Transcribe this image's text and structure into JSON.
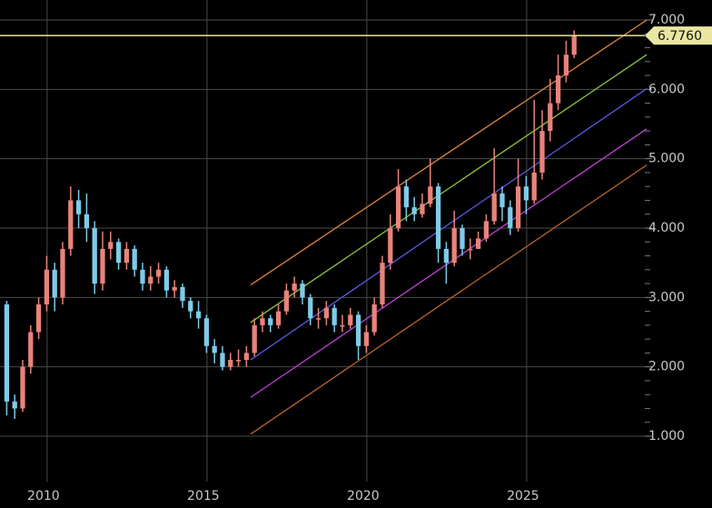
{
  "chart_data": {
    "type": "candlestick",
    "xlim": [
      2008.64,
      2028.81
    ],
    "ylim": [
      0.345,
      7.288
    ],
    "xticks": [
      2010,
      2015,
      2020,
      2025
    ],
    "yticks": [
      {
        "value": 1,
        "label": "1.000"
      },
      {
        "value": 2,
        "label": "2.000"
      },
      {
        "value": 3,
        "label": "3.000"
      },
      {
        "value": 4,
        "label": "4.000"
      },
      {
        "value": 5,
        "label": "5.000"
      },
      {
        "value": 6,
        "label": "6.000"
      },
      {
        "value": 7,
        "label": "7.000"
      }
    ],
    "yminor_ticks": [
      1.2,
      1.4,
      1.6,
      1.8,
      2.2,
      2.4,
      2.6,
      2.8,
      3.2,
      3.4,
      3.6,
      3.8,
      4.2,
      4.4,
      4.6,
      4.8,
      5.2,
      5.4,
      5.6,
      5.8,
      6.2,
      6.4,
      6.6,
      6.8
    ],
    "grid": true,
    "up_color": "#e8837b",
    "down_color": "#7ecbe8",
    "x": [
      2008.85,
      2009.1,
      2009.35,
      2009.6,
      2009.85,
      2010.1,
      2010.35,
      2010.6,
      2010.85,
      2011.1,
      2011.35,
      2011.6,
      2011.85,
      2012.1,
      2012.35,
      2012.6,
      2012.85,
      2013.1,
      2013.35,
      2013.6,
      2013.85,
      2014.1,
      2014.35,
      2014.6,
      2014.85,
      2015.1,
      2015.35,
      2015.6,
      2015.85,
      2016.1,
      2016.35,
      2016.6,
      2016.85,
      2017.1,
      2017.35,
      2017.6,
      2017.85,
      2018.1,
      2018.35,
      2018.6,
      2018.85,
      2019.1,
      2019.35,
      2019.6,
      2019.85,
      2020.1,
      2020.35,
      2020.6,
      2020.85,
      2021.1,
      2021.35,
      2021.6,
      2021.85,
      2022.1,
      2022.35,
      2022.6,
      2022.85,
      2023.1,
      2023.35,
      2023.6,
      2023.85,
      2024.1,
      2024.35,
      2024.6,
      2024.85,
      2025.1,
      2025.35,
      2025.6,
      2025.85,
      2026.1,
      2026.35,
      2026.6
    ],
    "open": [
      2.9,
      1.5,
      1.4,
      2.0,
      2.5,
      2.9,
      3.4,
      3.0,
      3.7,
      4.4,
      4.2,
      4.0,
      3.2,
      3.7,
      3.8,
      3.5,
      3.7,
      3.4,
      3.2,
      3.3,
      3.4,
      3.1,
      3.15,
      2.95,
      2.8,
      2.7,
      2.3,
      2.2,
      2.0,
      2.1,
      2.1,
      2.2,
      2.6,
      2.7,
      2.6,
      2.8,
      3.1,
      3.2,
      3.0,
      2.7,
      2.7,
      2.85,
      2.6,
      2.6,
      2.75,
      2.3,
      2.5,
      2.9,
      3.5,
      4.0,
      4.6,
      4.3,
      4.2,
      4.35,
      4.6,
      3.7,
      3.5,
      4.0,
      3.7,
      3.7,
      3.85,
      4.1,
      4.5,
      4.3,
      4.0,
      4.6,
      4.4,
      4.8,
      5.4,
      5.8,
      6.2,
      6.5
    ],
    "high": [
      2.95,
      1.6,
      2.1,
      2.6,
      3.0,
      3.6,
      3.5,
      3.8,
      4.6,
      4.55,
      4.5,
      4.1,
      3.95,
      3.95,
      3.85,
      3.8,
      3.75,
      3.5,
      3.45,
      3.5,
      3.45,
      3.25,
      3.2,
      3.0,
      2.95,
      2.75,
      2.4,
      2.3,
      2.2,
      2.25,
      2.3,
      2.7,
      2.8,
      2.75,
      2.9,
      3.2,
      3.3,
      3.25,
      3.05,
      2.85,
      2.95,
      2.9,
      2.75,
      2.85,
      2.8,
      2.6,
      3.0,
      3.6,
      4.2,
      4.85,
      4.7,
      4.45,
      4.5,
      5.0,
      4.65,
      3.8,
      4.25,
      4.05,
      3.85,
      3.95,
      4.2,
      5.15,
      4.6,
      4.4,
      5.0,
      4.75,
      5.85,
      5.7,
      6.15,
      6.5,
      6.7,
      6.85
    ],
    "low": [
      1.3,
      1.25,
      1.35,
      1.9,
      2.4,
      2.8,
      2.8,
      2.9,
      3.6,
      4.0,
      3.8,
      3.05,
      3.1,
      3.55,
      3.4,
      3.4,
      3.3,
      3.1,
      3.1,
      3.2,
      3.0,
      3.0,
      2.85,
      2.7,
      2.55,
      2.2,
      2.05,
      1.95,
      1.95,
      2.0,
      2.0,
      2.15,
      2.5,
      2.5,
      2.55,
      2.75,
      3.0,
      2.9,
      2.6,
      2.55,
      2.6,
      2.5,
      2.5,
      2.55,
      2.1,
      2.2,
      2.45,
      2.85,
      3.4,
      3.95,
      4.1,
      4.1,
      4.15,
      4.3,
      3.5,
      3.2,
      3.45,
      3.6,
      3.55,
      3.7,
      3.8,
      4.05,
      4.1,
      3.9,
      3.95,
      4.2,
      4.35,
      4.7,
      5.25,
      5.7,
      6.1,
      6.45
    ],
    "close": [
      1.5,
      1.4,
      2.0,
      2.5,
      2.9,
      3.4,
      3.0,
      3.7,
      4.4,
      4.2,
      4.0,
      3.2,
      3.7,
      3.8,
      3.5,
      3.7,
      3.4,
      3.2,
      3.3,
      3.4,
      3.1,
      3.15,
      2.95,
      2.8,
      2.7,
      2.3,
      2.2,
      2.0,
      2.1,
      2.1,
      2.2,
      2.6,
      2.7,
      2.6,
      2.8,
      3.1,
      3.2,
      3.0,
      2.7,
      2.7,
      2.85,
      2.6,
      2.6,
      2.75,
      2.3,
      2.5,
      2.9,
      3.5,
      4.0,
      4.6,
      4.3,
      4.2,
      4.35,
      4.6,
      3.7,
      3.5,
      4.0,
      3.7,
      3.7,
      3.85,
      4.1,
      4.5,
      4.3,
      4.0,
      4.6,
      4.4,
      4.8,
      5.4,
      5.8,
      6.2,
      6.5,
      6.776
    ],
    "channel": [
      {
        "color": "#e0853a",
        "x": [
          2016.48,
          2028.87
        ],
        "y": [
          3.18,
          7.0
        ]
      },
      {
        "color": "#8fc43a",
        "x": [
          2016.48,
          2028.87
        ],
        "y": [
          2.64,
          6.5
        ]
      },
      {
        "color": "#5a5ae0",
        "x": [
          2016.48,
          2028.87
        ],
        "y": [
          2.1,
          6.01
        ]
      },
      {
        "color": "#c040d8",
        "x": [
          2016.48,
          2028.87
        ],
        "y": [
          1.56,
          5.43
        ]
      },
      {
        "color": "#b8642a",
        "x": [
          2016.48,
          2028.87
        ],
        "y": [
          1.03,
          4.91
        ]
      }
    ],
    "last_price": {
      "value": 6.776,
      "label": "6.7760",
      "color": "#e8e6a0"
    }
  }
}
